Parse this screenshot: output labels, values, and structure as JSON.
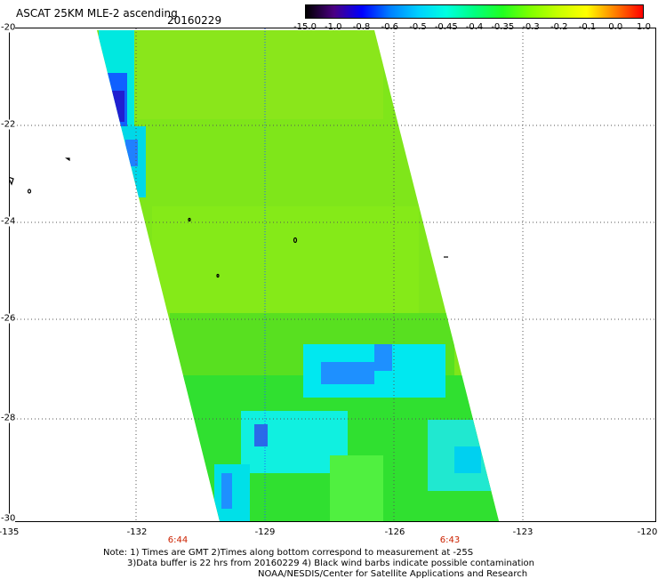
{
  "header": {
    "title": "ASCAT 25KM MLE-2 ascending",
    "date": "20160229"
  },
  "colorbar": {
    "labels": [
      "-15.0",
      "-1.0",
      "-0.8",
      "-0.6",
      "-0.5",
      "-0.45",
      "-0.4",
      "-0.35",
      "-0.3",
      "-0.2",
      "-0.1",
      "0.0",
      "1.0"
    ],
    "colors": [
      "#000000",
      "#4b0082",
      "#0000ff",
      "#0080ff",
      "#00d0ff",
      "#00ffe0",
      "#00ff80",
      "#20ff20",
      "#80ff00",
      "#c8ff00",
      "#ffff00",
      "#ff8000",
      "#ff0000"
    ]
  },
  "axes": {
    "y_labels": [
      "-20",
      "-22",
      "-24",
      "-26",
      "-28",
      "-30"
    ],
    "x_labels": [
      "-135",
      "-132",
      "-129",
      "-126",
      "-123",
      "-120"
    ]
  },
  "times": [
    "6:44",
    "6:43"
  ],
  "notes": {
    "line1": "Note: 1) Times are GMT 2)Times along bottom correspond to measurement at -25S",
    "line2": "3)Data buffer is 22 hrs from 20160229 4) Black wind barbs indicate possible contamination",
    "line3": "NOAA/NESDIS/Center for Satellite Applications and Research"
  }
}
